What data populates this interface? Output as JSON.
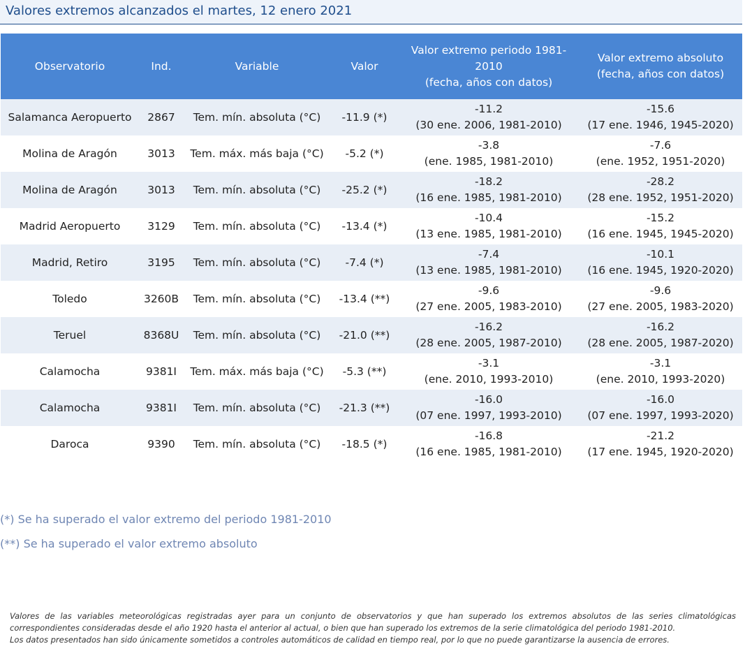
{
  "title": "Valores extremos alcanzados el martes, 12 enero 2021",
  "table": {
    "headers": [
      "Observatorio",
      "Ind.",
      "Variable",
      "Valor",
      "Valor extremo periodo 1981-2010\n(fecha, años con datos)",
      "Valor extremo absoluto\n(fecha, años con datos)"
    ],
    "rows": [
      {
        "observatorio": "Salamanca Aeropuerto",
        "ind": "2867",
        "variable": "Tem. mín. absoluta (°C)",
        "valor": "-11.9 (*)",
        "periodo_valor": "-11.2",
        "periodo_fecha": "(30 ene. 2006, 1981-2010)",
        "absoluto_valor": "-15.6",
        "absoluto_fecha": "(17 ene. 1946, 1945-2020)"
      },
      {
        "observatorio": "Molina de Aragón",
        "ind": "3013",
        "variable": "Tem. máx. más baja (°C)",
        "valor": "-5.2 (*)",
        "periodo_valor": "-3.8",
        "periodo_fecha": "(ene. 1985, 1981-2010)",
        "absoluto_valor": "-7.6",
        "absoluto_fecha": "(ene. 1952, 1951-2020)"
      },
      {
        "observatorio": "Molina de Aragón",
        "ind": "3013",
        "variable": "Tem. mín. absoluta (°C)",
        "valor": "-25.2 (*)",
        "periodo_valor": "-18.2",
        "periodo_fecha": "(16 ene. 1985, 1981-2010)",
        "absoluto_valor": "-28.2",
        "absoluto_fecha": "(28 ene. 1952, 1951-2020)"
      },
      {
        "observatorio": "Madrid Aeropuerto",
        "ind": "3129",
        "variable": "Tem. mín. absoluta (°C)",
        "valor": "-13.4 (*)",
        "periodo_valor": "-10.4",
        "periodo_fecha": "(13 ene. 1985, 1981-2010)",
        "absoluto_valor": "-15.2",
        "absoluto_fecha": "(16 ene. 1945, 1945-2020)"
      },
      {
        "observatorio": "Madrid, Retiro",
        "ind": "3195",
        "variable": "Tem. mín. absoluta (°C)",
        "valor": "-7.4 (*)",
        "periodo_valor": "-7.4",
        "periodo_fecha": "(13 ene. 1985, 1981-2010)",
        "absoluto_valor": "-10.1",
        "absoluto_fecha": "(16 ene. 1945, 1920-2020)"
      },
      {
        "observatorio": "Toledo",
        "ind": "3260B",
        "variable": "Tem. mín. absoluta (°C)",
        "valor": "-13.4 (**)",
        "periodo_valor": "-9.6",
        "periodo_fecha": "(27 ene. 2005, 1983-2010)",
        "absoluto_valor": "-9.6",
        "absoluto_fecha": "(27 ene. 2005, 1983-2020)"
      },
      {
        "observatorio": "Teruel",
        "ind": "8368U",
        "variable": "Tem. mín. absoluta (°C)",
        "valor": "-21.0 (**)",
        "periodo_valor": "-16.2",
        "periodo_fecha": "(28 ene. 2005, 1987-2010)",
        "absoluto_valor": "-16.2",
        "absoluto_fecha": "(28 ene. 2005, 1987-2020)"
      },
      {
        "observatorio": "Calamocha",
        "ind": "9381I",
        "variable": "Tem. máx. más baja (°C)",
        "valor": "-5.3 (**)",
        "periodo_valor": "-3.1",
        "periodo_fecha": "(ene. 2010, 1993-2010)",
        "absoluto_valor": "-3.1",
        "absoluto_fecha": "(ene. 2010, 1993-2020)"
      },
      {
        "observatorio": "Calamocha",
        "ind": "9381I",
        "variable": "Tem. mín. absoluta (°C)",
        "valor": "-21.3 (**)",
        "periodo_valor": "-16.0",
        "periodo_fecha": "(07 ene. 1997, 1993-2010)",
        "absoluto_valor": "-16.0",
        "absoluto_fecha": "(07 ene. 1997, 1993-2020)"
      },
      {
        "observatorio": "Daroca",
        "ind": "9390",
        "variable": "Tem. mín. absoluta (°C)",
        "valor": "-18.5 (*)",
        "periodo_valor": "-16.8",
        "periodo_fecha": "(16 ene. 1985, 1981-2010)",
        "absoluto_valor": "-21.2",
        "absoluto_fecha": "(17 ene. 1945, 1920-2020)"
      }
    ]
  },
  "notes": [
    "(*) Se ha superado el valor extremo del periodo 1981-2010",
    "(**) Se ha superado el valor extremo absoluto"
  ],
  "footer": [
    "Valores de las variables meteorológicas registradas ayer para un conjunto de observatorios y que han superado los extremos absolutos de las series climatológicas correspondientes consideradas desde el año 1920 hasta el anterior al actual, o bien que han superado los extremos de la serie climatológica del periodo 1981-2010.",
    "Los datos presentados han sido únicamente sometidos a controles automáticos de calidad en tiempo real, por lo que no puede garantizarse la ausencia de errores."
  ]
}
